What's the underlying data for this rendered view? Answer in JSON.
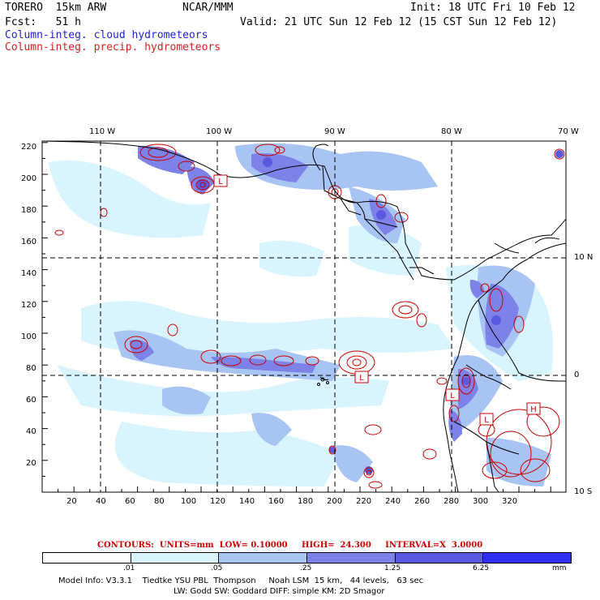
{
  "header": {
    "model_name": "TORERO  15km ARW",
    "org": "NCAR/MMM",
    "init": "Init: 18 UTC Fri 10 Feb 12",
    "forecast": "Fcst:   51 h",
    "valid": "Valid: 21 UTC Sun 12 Feb 12 (15 CST Sun 12 Feb 12)",
    "field1": "Column-integ. cloud hydrometeors",
    "field2": "Column-integ. precip. hydrometeors"
  },
  "colors": {
    "cloud_title": "#1f1fd6",
    "precip_title": "#d61f1f",
    "contour": "#cc0000",
    "shade_levels": [
      "#ffffff",
      "#d8f4ff",
      "#a8c4f2",
      "#7d82e8",
      "#5a5ae0",
      "#2f2ff0"
    ]
  },
  "map": {
    "top_lon_labels": [
      "110 W",
      "100 W",
      "90 W",
      "80 W",
      "70 W"
    ],
    "right_lat_labels": [
      "10 N",
      "0",
      "10 S"
    ],
    "left_ticks": [
      "220",
      "200",
      "180",
      "160",
      "140",
      "120",
      "100",
      "80",
      "60",
      "40",
      "20"
    ],
    "bottom_ticks": [
      "20",
      "40",
      "60",
      "80",
      "100",
      "120",
      "140",
      "160",
      "180",
      "200",
      "220",
      "240",
      "260",
      "280",
      "300",
      "320"
    ],
    "low_high_markers": [
      {
        "label": "L"
      },
      {
        "label": "L"
      },
      {
        "label": "L"
      },
      {
        "label": "L"
      },
      {
        "label": "H"
      }
    ]
  },
  "colorbar": {
    "contours_line": "CONTOURS:  UNITS=mm  LOW= 0.10000     HIGH=  24.300     INTERVAL=X  3.0000",
    "labels": [
      ".01",
      ".05",
      ".25",
      "1.25",
      "6.25"
    ],
    "units": "mm"
  },
  "footer": {
    "line1": "Model Info: V3.3.1    Tiedtke YSU PBL  Thompson     Noah LSM  15 km,   44 levels,   63 sec",
    "line2": "LW: Godd SW: Goddard DIFF: simple KM: 2D Smagor"
  }
}
